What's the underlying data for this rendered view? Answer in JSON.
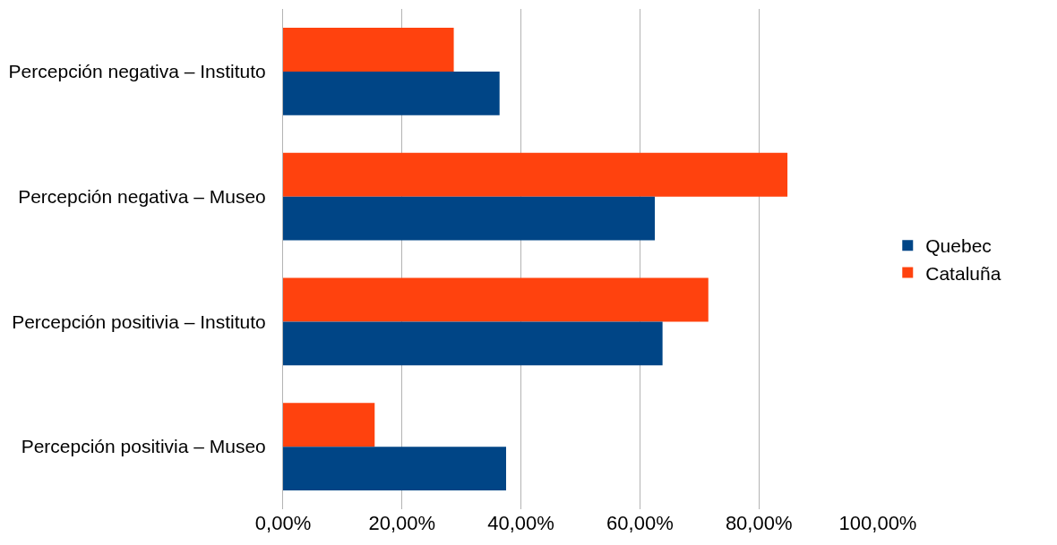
{
  "chart_data": {
    "type": "bar",
    "orientation": "horizontal",
    "categories": [
      "Percepción negativa – Instituto",
      "Percepción negativa – Museo",
      "Percepción positivia – Instituto",
      "Percepción positivia – Museo"
    ],
    "series": [
      {
        "name": "Cataluña",
        "color": "#ff420e",
        "values": [
          28.7,
          84.8,
          71.5,
          15.4
        ]
      },
      {
        "name": "Quebec",
        "color": "#004586",
        "values": [
          36.4,
          62.5,
          63.8,
          37.5
        ]
      }
    ],
    "xlim": [
      0,
      100
    ],
    "xticks": [
      {
        "value": 0,
        "label": "0,00%"
      },
      {
        "value": 20,
        "label": "20,00%"
      },
      {
        "value": 40,
        "label": "40,00%"
      },
      {
        "value": 60,
        "label": "60,00%"
      },
      {
        "value": 80,
        "label": "80,00%"
      },
      {
        "value": 100,
        "label": "100,00%"
      }
    ],
    "grid": "x",
    "legend": "right"
  }
}
